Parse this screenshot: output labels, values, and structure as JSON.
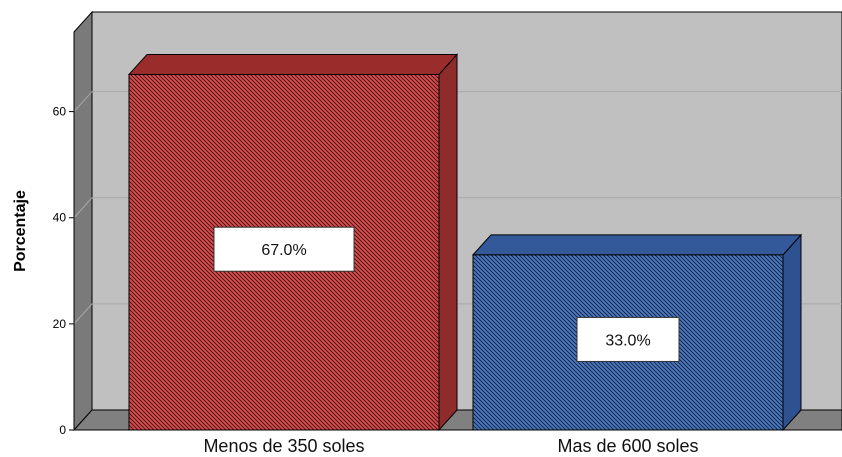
{
  "chart_data": {
    "type": "bar",
    "title": "",
    "xlabel": "",
    "ylabel": "Porcentaje",
    "categories": [
      "Menos de 350 soles",
      "Mas de 600 soles"
    ],
    "values": [
      67.0,
      33.0
    ],
    "data_labels": [
      "67.0%",
      "33.0%"
    ],
    "yticks": [
      0,
      20,
      40,
      60
    ],
    "ytick_labels": [
      "0",
      "20",
      "40",
      "60"
    ],
    "ylim": [
      0,
      75
    ],
    "grid": true,
    "style": "3d",
    "colors": {
      "bars": [
        "#d94b4b",
        "#4a78c2"
      ],
      "bar_sides": [
        "#8e2b2b",
        "#2d528f"
      ],
      "bar_tops": [
        "#9a2c2c",
        "#33599a"
      ],
      "wall": "#c0c0c0",
      "left_wall": "#7a7a7a",
      "floor": "#808080"
    }
  }
}
